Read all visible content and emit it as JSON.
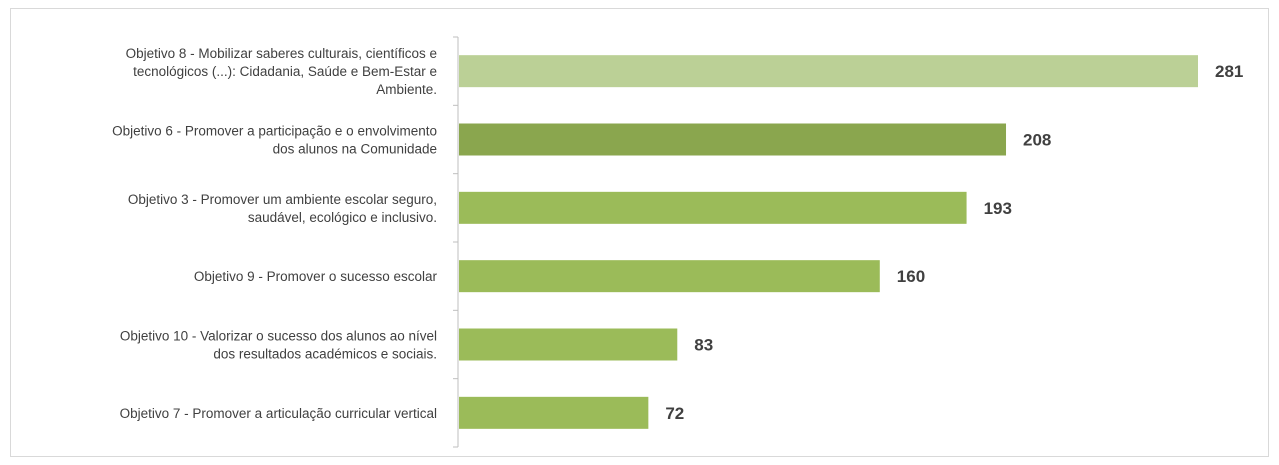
{
  "chart_data": {
    "type": "bar",
    "orientation": "horizontal",
    "title": "",
    "xlabel": "",
    "ylabel": "",
    "categories": [
      [
        "Objetivo 8 - Mobilizar saberes culturais, científicos e",
        "tecnológicos (...): Cidadania, Saúde e Bem-Estar e",
        "Ambiente."
      ],
      [
        "Objetivo 6 - Promover a participação e o envolvimento",
        "dos alunos na Comunidade"
      ],
      [
        "Objetivo 3 - Promover um ambiente escolar seguro,",
        "saudável, ecológico e inclusivo."
      ],
      [
        "Objetivo 9 - Promover o sucesso escolar"
      ],
      [
        "Objetivo 10 - Valorizar o sucesso dos alunos ao nível",
        "dos resultados académicos e sociais."
      ],
      [
        "Objetivo 7 - Promover a articulação curricular vertical"
      ]
    ],
    "values": [
      281,
      208,
      193,
      160,
      83,
      72
    ],
    "value_labels": [
      "281",
      "208",
      "193",
      "160",
      "83",
      "72"
    ],
    "bar_colors": [
      "#bbd096",
      "#8aa64e",
      "#9bbb59",
      "#9bbb59",
      "#9bbb59",
      "#9bbb59"
    ],
    "axis_color": "#bfbfbf",
    "label_color": "#404040",
    "xlim": [
      0,
      281
    ],
    "grid": false,
    "legend": "none"
  }
}
